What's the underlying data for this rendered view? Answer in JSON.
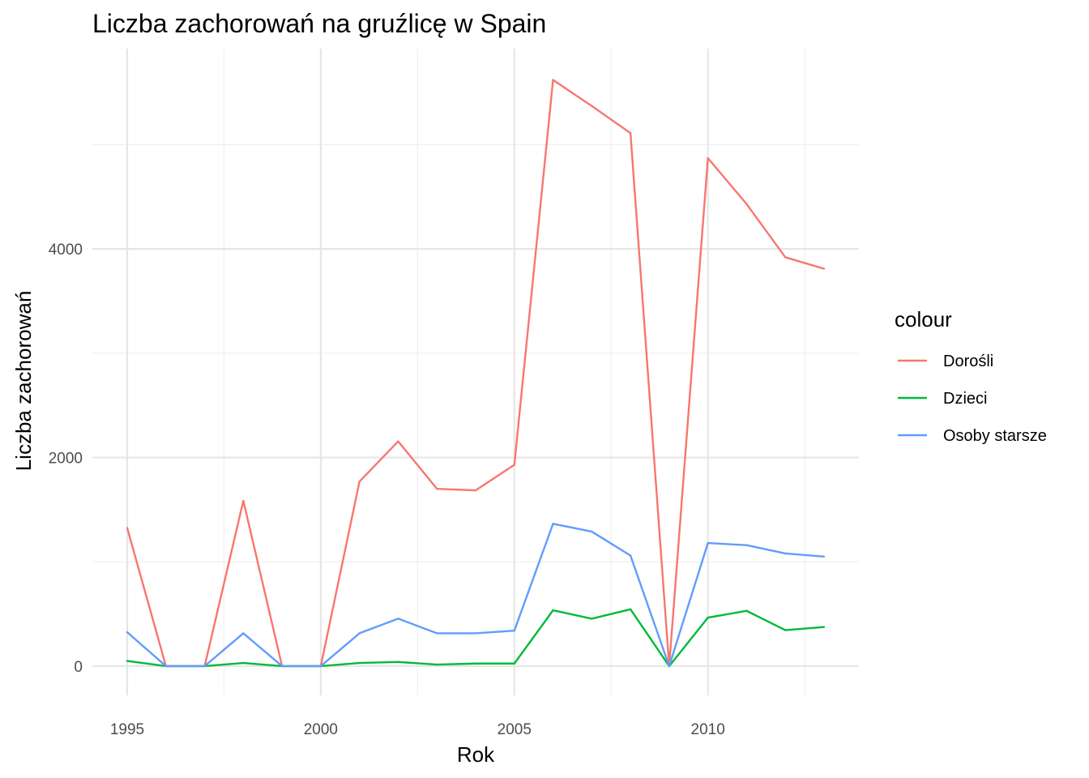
{
  "chart_data": {
    "type": "line",
    "title": "Liczba zachorowań na gruźlicę w Spain",
    "xlabel": "Rok",
    "ylabel": "Liczba zachorowań",
    "x": [
      1995,
      1996,
      1997,
      1998,
      1999,
      2000,
      2001,
      2002,
      2003,
      2004,
      2005,
      2006,
      2007,
      2008,
      2009,
      2010,
      2011,
      2012,
      2013
    ],
    "xlim": [
      1994.1,
      2013.9
    ],
    "ylim": [
      -280,
      5920
    ],
    "x_ticks": [
      1995,
      2000,
      2005,
      2010
    ],
    "x_tick_labels": [
      "1995",
      "2000",
      "2005",
      "2010"
    ],
    "y_ticks": [
      0,
      2000,
      4000
    ],
    "y_tick_labels": [
      "0",
      "2000",
      "4000"
    ],
    "grid": true,
    "legend": {
      "title": "colour",
      "position": "right"
    },
    "series": [
      {
        "name": "Dorośli",
        "color": "#F8766D",
        "values": [
          1325,
          0,
          0,
          1585,
          0,
          0,
          1770,
          2155,
          1700,
          1685,
          1930,
          5620,
          5370,
          5110,
          0,
          4870,
          4430,
          3920,
          3810
        ]
      },
      {
        "name": "Dzieci",
        "color": "#00BA38",
        "values": [
          50,
          0,
          0,
          30,
          0,
          0,
          30,
          40,
          15,
          25,
          25,
          535,
          455,
          545,
          0,
          465,
          530,
          345,
          375
        ]
      },
      {
        "name": "Osoby starsze",
        "color": "#619CFF",
        "values": [
          325,
          0,
          0,
          315,
          0,
          0,
          315,
          455,
          315,
          315,
          340,
          1365,
          1290,
          1060,
          0,
          1180,
          1160,
          1080,
          1050
        ]
      }
    ]
  }
}
